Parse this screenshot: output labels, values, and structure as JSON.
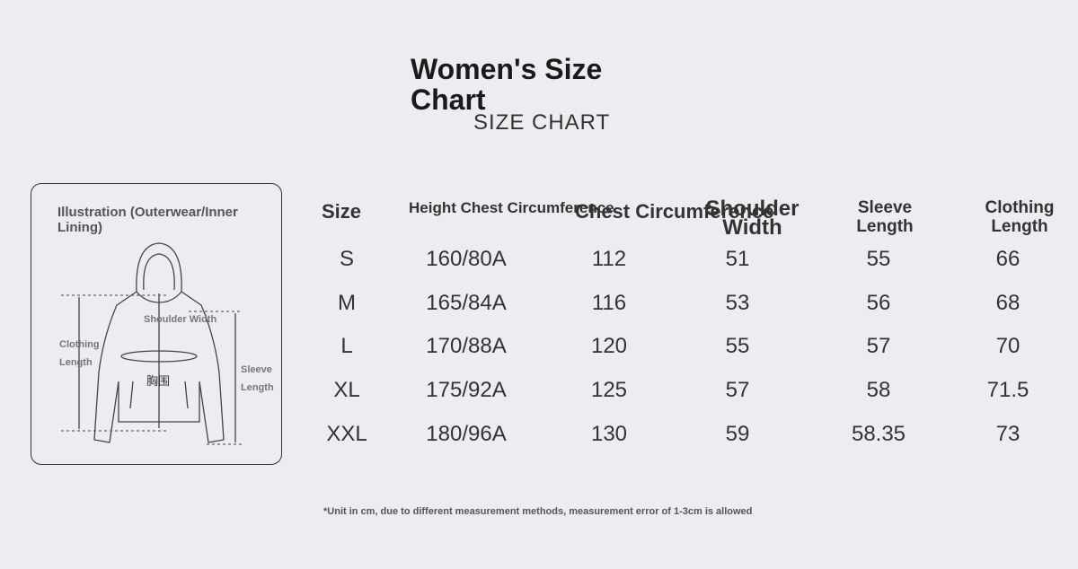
{
  "header": {
    "title": "Women's Size Chart",
    "subtitle": "SIZE CHART"
  },
  "illustration": {
    "title": "Illustration (Outerwear/Inner Lining)",
    "labels": [
      "Shoulder Width",
      "Clothing Length",
      "Sleeve Length",
      "胸围"
    ]
  },
  "table": {
    "headers": [
      "Size",
      "Height Chest Circumference",
      "Chest Circumference",
      "Shoulder Width",
      "Sleeve Length",
      "Clothing Length"
    ],
    "rows": [
      [
        "S",
        "160/80A",
        "112",
        "51",
        "55",
        "66"
      ],
      [
        "M",
        "165/84A",
        "116",
        "53",
        "56",
        "68"
      ],
      [
        "L",
        "170/88A",
        "120",
        "55",
        "57",
        "70"
      ],
      [
        "XL",
        "175/92A",
        "125",
        "57",
        "58",
        "71.5"
      ],
      [
        "XXL",
        "180/96A",
        "130",
        "59",
        "58.35",
        "73"
      ]
    ]
  },
  "footnote": "*Unit in cm, due to different measurement methods, measurement error of 1-3cm is allowed"
}
